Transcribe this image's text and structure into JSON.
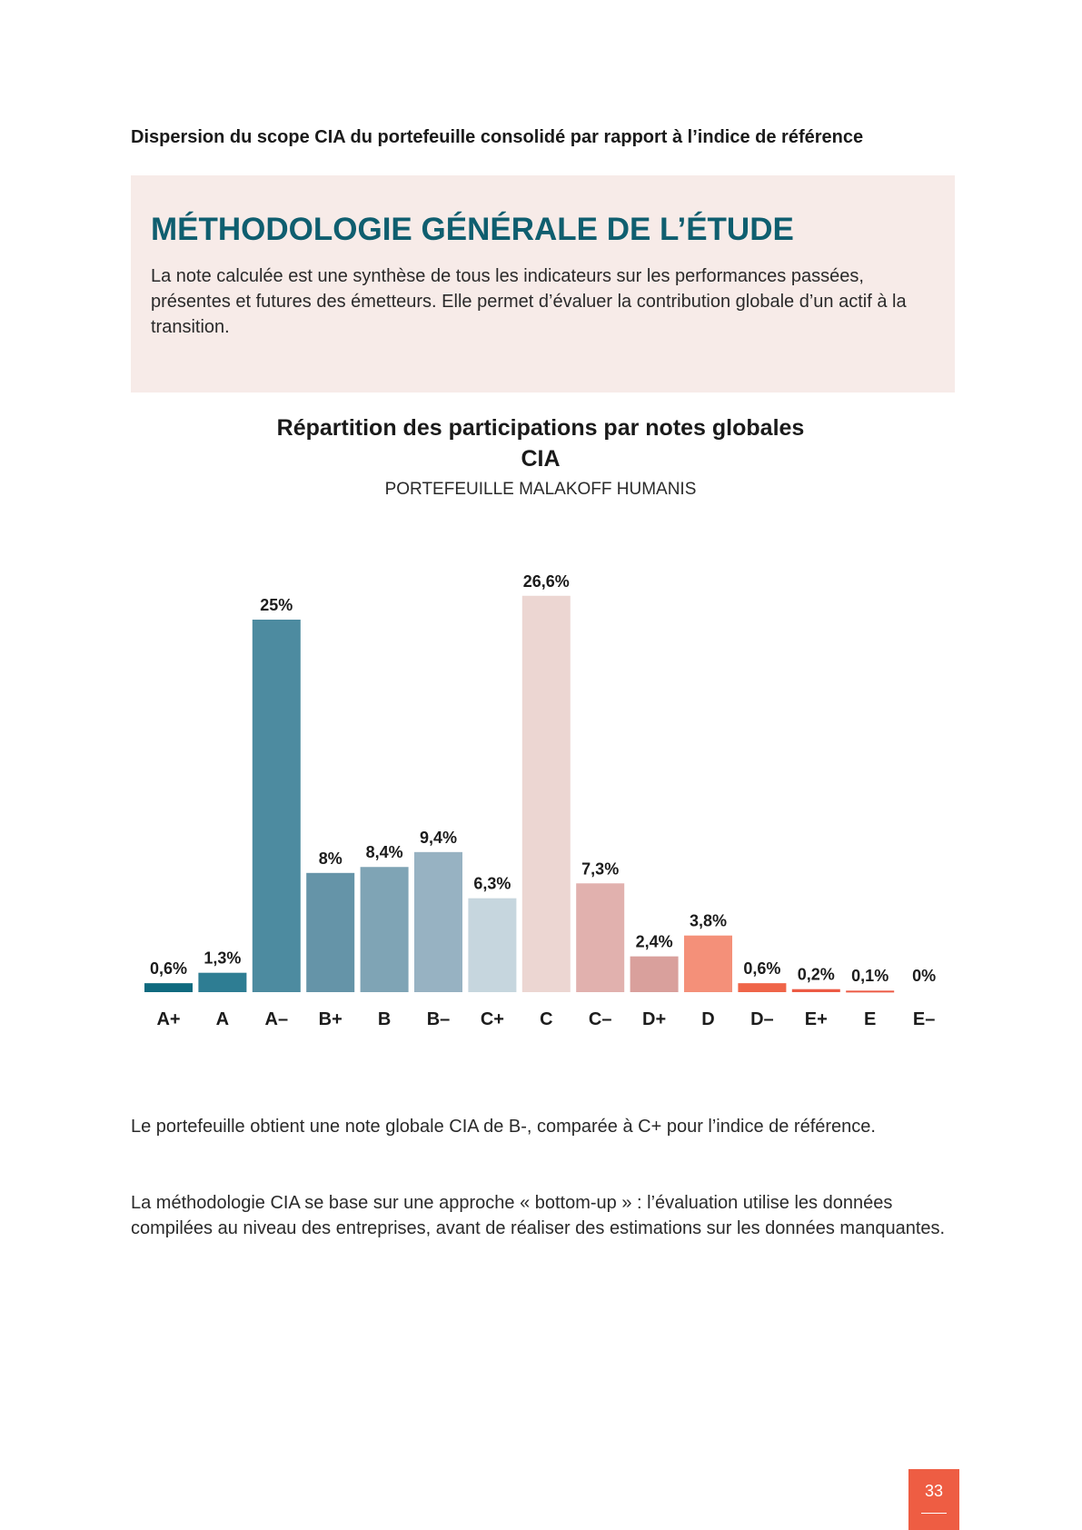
{
  "heading": "Dispersion du scope CIA du portefeuille consolidé par rapport à l’indice de référence",
  "methodology": {
    "title": "MÉTHODOLOGIE GÉNÉRALE DE L’ÉTUDE",
    "text": "La note calculée est une synthèse de tous les indicateurs sur les performances passées, présentes et futures des émetteurs. Elle permet d’évaluer la contribution globale d’un actif à la transition."
  },
  "chart_data": {
    "type": "bar",
    "title": "Répartition des participations par notes globales CIA",
    "subtitle": "PORTEFEUILLE MALAKOFF HUMANIS",
    "xlabel": "",
    "ylabel": "",
    "ylim": [
      0,
      30
    ],
    "grid": false,
    "categories": [
      "A+",
      "A",
      "A–",
      "B+",
      "B",
      "B–",
      "C+",
      "C",
      "C–",
      "D+",
      "D",
      "D–",
      "E+",
      "E",
      "E–"
    ],
    "values": [
      0.6,
      1.3,
      25,
      8,
      8.4,
      9.4,
      6.3,
      26.6,
      7.3,
      2.4,
      3.8,
      0.6,
      0.2,
      0.1,
      0
    ],
    "value_labels": [
      "0,6%",
      "1,3%",
      "25%",
      "8%",
      "8,4%",
      "9,4%",
      "6,3%",
      "26,6%",
      "7,3%",
      "2,4%",
      "3,8%",
      "0,6%",
      "0,2%",
      "0,1%",
      "0%"
    ],
    "colors": [
      "#0f6a7f",
      "#2e7d93",
      "#4d8ba0",
      "#6594a8",
      "#7fa4b5",
      "#97b2c2",
      "#c6d6de",
      "#ecd6d2",
      "#e1b1ae",
      "#d9a09c",
      "#f49079",
      "#ef6549",
      "#ec5a44",
      "#ec5a44",
      "#ec5a44"
    ]
  },
  "paragraphs": [
    "Le portefeuille obtient une note globale CIA de B-, comparée à C+ pour l’indice de référence.",
    "La méthodologie CIA se base sur une approche « bottom-up » : l’évaluation utilise les données compilées au niveau des entreprises, avant de réaliser des estimations sur les données manquantes."
  ],
  "page_number": "33"
}
